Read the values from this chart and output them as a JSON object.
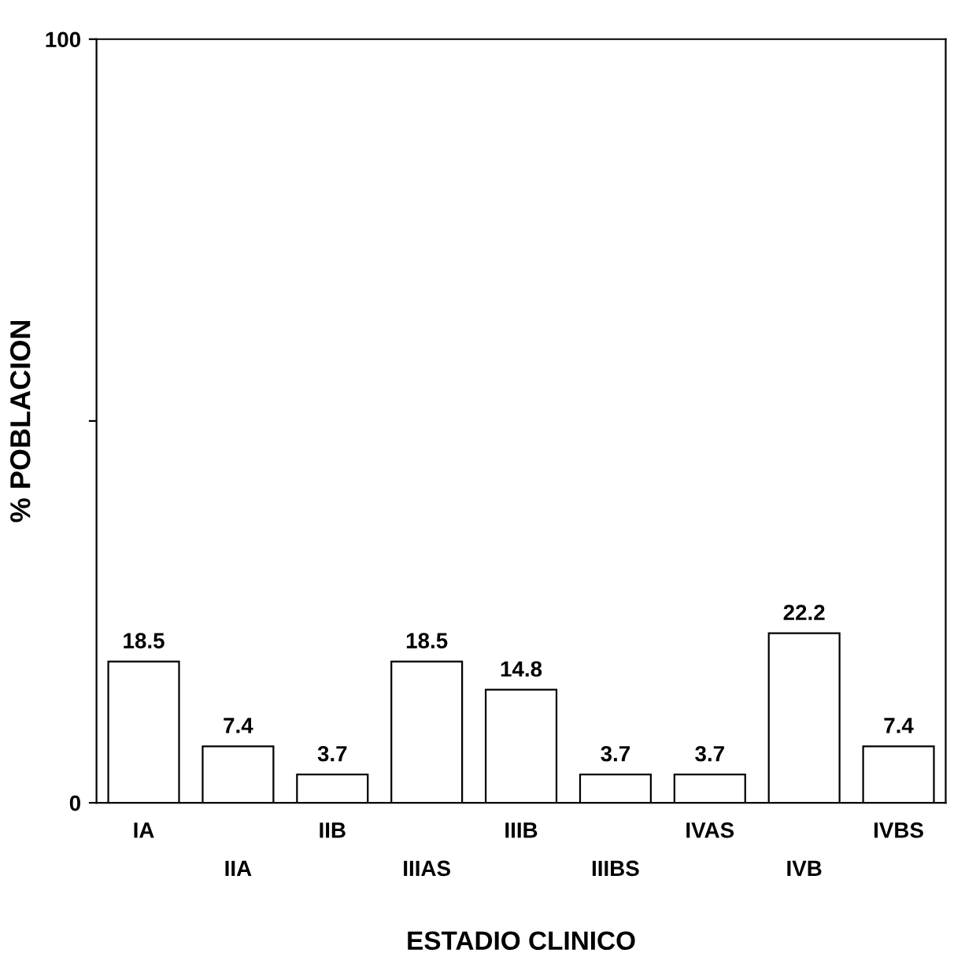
{
  "chart_data": {
    "type": "bar",
    "categories": [
      "IA",
      "IIA",
      "IIB",
      "IIIAS",
      "IIIB",
      "IIIBS",
      "IVAS",
      "IVB",
      "IVBS"
    ],
    "values": [
      18.5,
      7.4,
      3.7,
      18.5,
      14.8,
      3.7,
      3.7,
      22.2,
      7.4
    ],
    "color": "#ffffff",
    "xlabel": "ESTADIO CLINICO",
    "ylabel": "% POBLACION",
    "ylim": [
      0,
      100
    ],
    "yticks": [
      0,
      {
        "value": 50,
        "label": null
      },
      100
    ],
    "data_labels": true,
    "grid": false,
    "legend": false
  }
}
